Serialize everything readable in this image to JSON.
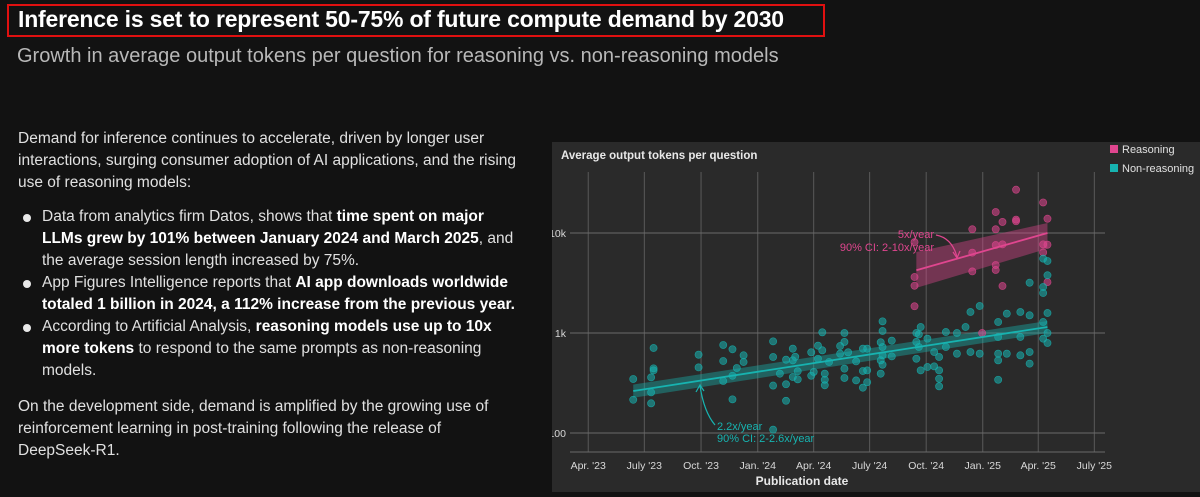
{
  "header": {
    "title": "Inference is set to represent 50-75% of future compute demand by 2030",
    "subtitle": "Growth in average output tokens per question for reasoning vs. non-reasoning models"
  },
  "body": {
    "intro": "Demand for inference continues to accelerate, driven by longer user interactions, surging consumer adoption of AI applications, and the rising use of reasoning models:",
    "bullets": [
      {
        "pre": "Data from analytics firm Datos, shows that ",
        "bold": "time spent on major LLMs grew by 101% between January 2024 and March 2025",
        "post": ", and the average session length increased by 75%."
      },
      {
        "pre": "App Figures Intelligence reports that ",
        "bold": "AI app downloads worldwide totaled 1 billion in 2024, a 112% increase from the previous year.",
        "post": ""
      },
      {
        "pre": "According to Artificial Analysis, ",
        "bold": "reasoning models use up to 10x more tokens",
        "post": " to respond to the same prompts as non-reasoning models."
      }
    ],
    "closing": "On the development side, demand is amplified by the growing use of reinforcement learning in post-training following the release of DeepSeek-R1."
  },
  "chart_data": {
    "type": "scatter",
    "title": "Average output tokens per question",
    "xlabel": "Publication date",
    "ylabel": "",
    "y_scale": "log",
    "ylim": [
      65,
      30000
    ],
    "y_ticks": [
      {
        "value": 100,
        "label": "100"
      },
      {
        "value": 1000,
        "label": "1k"
      },
      {
        "value": 10000,
        "label": "10k"
      }
    ],
    "x_ticks": [
      {
        "date": "2023-04-01",
        "label": "Apr. '23"
      },
      {
        "date": "2023-07-01",
        "label": "July '23"
      },
      {
        "date": "2023-10-01",
        "label": "Oct. '23"
      },
      {
        "date": "2024-01-01",
        "label": "Jan. '24"
      },
      {
        "date": "2024-04-01",
        "label": "Apr. '24"
      },
      {
        "date": "2024-07-01",
        "label": "July '24"
      },
      {
        "date": "2024-10-01",
        "label": "Oct. '24"
      },
      {
        "date": "2025-01-01",
        "label": "Jan. '25"
      },
      {
        "date": "2025-04-01",
        "label": "Apr. '25"
      },
      {
        "date": "2025-07-01",
        "label": "July '25"
      }
    ],
    "grid": true,
    "legend_position": "top-right",
    "series": [
      {
        "name": "Reasoning",
        "color": "#e0468f",
        "trend": {
          "start": [
            "2024-09-15",
            4240
          ],
          "end": [
            "2025-04-16",
            10000
          ],
          "ci_start": [
            2830,
            6450
          ],
          "ci_end": [
            6970,
            12590
          ]
        },
        "annotation": [
          "5x/year",
          "90% CI: 2-10x/year"
        ],
        "points": [
          [
            "2024-09-12",
            8100
          ],
          [
            "2024-09-12",
            3630
          ],
          [
            "2024-09-12",
            2970
          ],
          [
            "2024-09-12",
            1850
          ],
          [
            "2024-12-15",
            10900
          ],
          [
            "2024-12-15",
            6360
          ],
          [
            "2024-12-15",
            4130
          ],
          [
            "2024-12-31",
            1000
          ],
          [
            "2025-01-22",
            16200
          ],
          [
            "2025-01-22",
            10900
          ],
          [
            "2025-01-22",
            7580
          ],
          [
            "2025-01-22",
            4790
          ],
          [
            "2025-01-22",
            4270
          ],
          [
            "2025-02-02",
            12900
          ],
          [
            "2025-02-02",
            7700
          ],
          [
            "2025-02-02",
            2950
          ],
          [
            "2025-02-24",
            27100
          ],
          [
            "2025-02-24",
            13600
          ],
          [
            "2025-02-24",
            13100
          ],
          [
            "2025-04-09",
            20200
          ],
          [
            "2025-04-09",
            7700
          ],
          [
            "2025-04-09",
            6400
          ],
          [
            "2025-04-16",
            13900
          ],
          [
            "2025-04-16",
            7640
          ],
          [
            "2025-04-16",
            3230
          ]
        ]
      },
      {
        "name": "Non-reasoning",
        "color": "#17b3b0",
        "trend": {
          "start": [
            "2023-06-13",
            263
          ],
          "end": [
            "2025-04-16",
            1148
          ],
          "ci_start": [
            225,
            305
          ],
          "ci_end": [
            1000,
            1320
          ]
        },
        "annotation": [
          "2.2x/year",
          "90% CI: 2-2.6x/year"
        ],
        "points": [
          [
            "2023-06-13",
            347
          ],
          [
            "2023-06-13",
            215
          ],
          [
            "2023-07-12",
            360
          ],
          [
            "2023-07-12",
            255
          ],
          [
            "2023-07-12",
            198
          ],
          [
            "2023-07-16",
            708
          ],
          [
            "2023-07-16",
            443
          ],
          [
            "2023-07-16",
            423
          ],
          [
            "2023-09-27",
            607
          ],
          [
            "2023-09-27",
            453
          ],
          [
            "2023-11-06",
            759
          ],
          [
            "2023-11-06",
            525
          ],
          [
            "2023-11-06",
            331
          ],
          [
            "2023-11-21",
            687
          ],
          [
            "2023-11-21",
            374
          ],
          [
            "2023-11-21",
            217
          ],
          [
            "2023-11-28",
            447
          ],
          [
            "2023-12-09",
            598
          ],
          [
            "2023-12-09",
            513
          ],
          [
            "2024-01-26",
            825
          ],
          [
            "2024-01-26",
            575
          ],
          [
            "2024-01-26",
            298
          ],
          [
            "2024-01-26",
            108
          ],
          [
            "2024-02-06",
            392
          ],
          [
            "2024-02-16",
            541
          ],
          [
            "2024-02-16",
            307
          ],
          [
            "2024-02-16",
            210
          ],
          [
            "2024-02-27",
            697
          ],
          [
            "2024-02-27",
            533
          ],
          [
            "2024-02-27",
            363
          ],
          [
            "2024-03-02",
            578
          ],
          [
            "2024-03-06",
            414
          ],
          [
            "2024-03-06",
            344
          ],
          [
            "2024-03-28",
            641
          ],
          [
            "2024-03-28",
            374
          ],
          [
            "2024-04-01",
            408
          ],
          [
            "2024-04-08",
            747
          ],
          [
            "2024-04-08",
            553
          ],
          [
            "2024-04-15",
            1016
          ],
          [
            "2024-04-15",
            671
          ],
          [
            "2024-04-19",
            392
          ],
          [
            "2024-04-19",
            341
          ],
          [
            "2024-04-19",
            300
          ],
          [
            "2024-04-26",
            513
          ],
          [
            "2024-05-14",
            741
          ],
          [
            "2024-05-14",
            621
          ],
          [
            "2024-05-21",
            1000
          ],
          [
            "2024-05-21",
            814
          ],
          [
            "2024-05-21",
            440
          ],
          [
            "2024-05-21",
            355
          ],
          [
            "2024-05-27",
            641
          ],
          [
            "2024-06-09",
            336
          ],
          [
            "2024-06-09",
            520
          ],
          [
            "2024-06-20",
            697
          ],
          [
            "2024-06-20",
            417
          ],
          [
            "2024-06-20",
            284
          ],
          [
            "2024-06-27",
            322
          ],
          [
            "2024-06-27",
            697
          ],
          [
            "2024-06-27",
            423
          ],
          [
            "2024-07-19",
            392
          ],
          [
            "2024-07-19",
            807
          ],
          [
            "2024-07-19",
            533
          ],
          [
            "2024-07-22",
            1308
          ],
          [
            "2024-07-22",
            1047
          ],
          [
            "2024-07-22",
            725
          ],
          [
            "2024-07-22",
            598
          ],
          [
            "2024-07-22",
            482
          ],
          [
            "2024-08-06",
            838
          ],
          [
            "2024-08-06",
            584
          ],
          [
            "2024-09-15",
            1000
          ],
          [
            "2024-09-15",
            814
          ],
          [
            "2024-09-15",
            553
          ],
          [
            "2024-09-19",
            970
          ],
          [
            "2024-09-19",
            725
          ],
          [
            "2024-09-22",
            1148
          ],
          [
            "2024-09-22",
            423
          ],
          [
            "2024-10-03",
            878
          ],
          [
            "2024-10-03",
            457
          ],
          [
            "2024-10-14",
            646
          ],
          [
            "2024-10-14",
            464
          ],
          [
            "2024-10-22",
            575
          ],
          [
            "2024-10-22",
            423
          ],
          [
            "2024-10-22",
            349
          ],
          [
            "2024-10-22",
            293
          ],
          [
            "2024-11-02",
            1023
          ],
          [
            "2024-11-02",
            725
          ],
          [
            "2024-11-20",
            1000
          ],
          [
            "2024-11-20",
            621
          ],
          [
            "2024-12-04",
            1148
          ],
          [
            "2024-12-12",
            1621
          ],
          [
            "2024-12-12",
            646
          ],
          [
            "2024-12-27",
            1862
          ],
          [
            "2024-12-27",
            621
          ],
          [
            "2025-01-26",
            1288
          ],
          [
            "2025-01-26",
            912
          ],
          [
            "2025-01-26",
            621
          ],
          [
            "2025-01-26",
            533
          ],
          [
            "2025-01-26",
            341
          ],
          [
            "2025-02-09",
            1561
          ],
          [
            "2025-02-09",
            621
          ],
          [
            "2025-03-03",
            1621
          ],
          [
            "2025-03-03",
            912
          ],
          [
            "2025-03-03",
            598
          ],
          [
            "2025-03-18",
            3184
          ],
          [
            "2025-03-18",
            494
          ],
          [
            "2025-03-18",
            646
          ],
          [
            "2025-03-18",
            1502
          ],
          [
            "2025-04-09",
            5540
          ],
          [
            "2025-04-09",
            2884
          ],
          [
            "2025-04-09",
            2512
          ],
          [
            "2025-04-09",
            1288
          ],
          [
            "2025-04-09",
            878
          ],
          [
            "2025-04-16",
            5250
          ],
          [
            "2025-04-16",
            3780
          ],
          [
            "2025-04-16",
            1585
          ],
          [
            "2025-04-16",
            1000
          ],
          [
            "2025-04-16",
            794
          ]
        ]
      }
    ]
  }
}
